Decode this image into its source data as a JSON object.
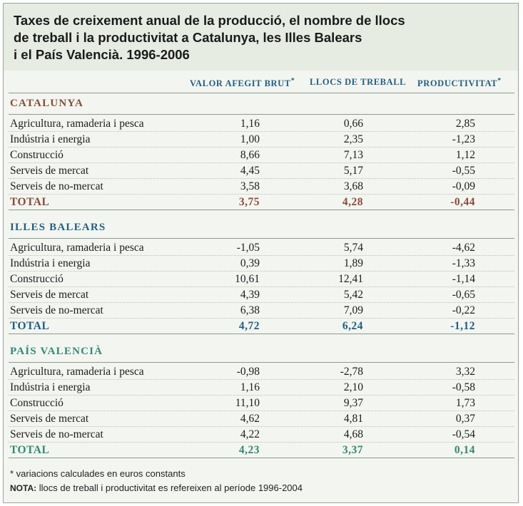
{
  "title_lines": [
    "Taxes de creixement anual de la producció, el nombre de llocs",
    "de treball i la productivitat a Catalunya, les Illes Balears",
    "i el País Valencià. 1996-2006"
  ],
  "columns": [
    {
      "label": "VALOR AFEGIT BRUT",
      "mark": "*"
    },
    {
      "label": "LLOCS DE TREBALL",
      "mark": ""
    },
    {
      "label": "PRODUCTIVITAT",
      "mark": "*"
    }
  ],
  "colors": {
    "catalunya": "#8b4a3a",
    "illes_balears": "#1f5f86",
    "pais_valencia": "#2f8a7a"
  },
  "sections": [
    {
      "name": "CATALUNYA",
      "rows": [
        {
          "label": "Agricultura, ramaderia i pesca",
          "values": [
            "1,16",
            "0,66",
            "2,85"
          ]
        },
        {
          "label": "Indústria i energia",
          "values": [
            "1,00",
            "2,35",
            "-1,23"
          ]
        },
        {
          "label": "Construcció",
          "values": [
            "8,66",
            "7,13",
            "1,12"
          ]
        },
        {
          "label": "Serveis de mercat",
          "values": [
            "4,45",
            "5,17",
            "-0,55"
          ]
        },
        {
          "label": "Serveis de no-mercat",
          "values": [
            "3,58",
            "3,68",
            "-0,09"
          ]
        }
      ],
      "total": {
        "label": "TOTAL",
        "values": [
          "3,75",
          "4,28",
          "-0,44"
        ]
      }
    },
    {
      "name": "ILLES BALEARS",
      "rows": [
        {
          "label": "Agricultura, ramaderia i pesca",
          "values": [
            "-1,05",
            "5,74",
            "-4,62"
          ]
        },
        {
          "label": "Indústria i energia",
          "values": [
            "0,39",
            "1,89",
            "-1,33"
          ]
        },
        {
          "label": "Construcció",
          "values": [
            "10,61",
            "12,41",
            "-1,14"
          ]
        },
        {
          "label": "Serveis de mercat",
          "values": [
            "4,39",
            "5,42",
            "-0,65"
          ]
        },
        {
          "label": "Serveis de no-mercat",
          "values": [
            "6,38",
            "7,09",
            "-0,22"
          ]
        }
      ],
      "total": {
        "label": "TOTAL",
        "values": [
          "4,72",
          "6,24",
          "-1,12"
        ]
      }
    },
    {
      "name": "PAÍS VALENCIÀ",
      "rows": [
        {
          "label": "Agricultura, ramaderia i pesca",
          "values": [
            "-0,98",
            "-2,78",
            "3,32"
          ]
        },
        {
          "label": "Indústria i energia",
          "values": [
            "1,16",
            "2,10",
            "-0,58"
          ]
        },
        {
          "label": "Construcció",
          "values": [
            "11,10",
            "9,37",
            "1,73"
          ]
        },
        {
          "label": "Serveis de mercat",
          "values": [
            "4,62",
            "4,81",
            "0,37"
          ]
        },
        {
          "label": "Serveis de no-mercat",
          "values": [
            "4,22",
            "4,68",
            "-0,54"
          ]
        }
      ],
      "total": {
        "label": "TOTAL",
        "values": [
          "4,23",
          "3,37",
          "0,14"
        ]
      }
    }
  ],
  "footnotes": {
    "asterisk": "* variacions calculades en euros constants",
    "nota_label": "NOTA:",
    "nota_text": " llocs de treball i productivitat es refereixen al període 1996-2004"
  }
}
